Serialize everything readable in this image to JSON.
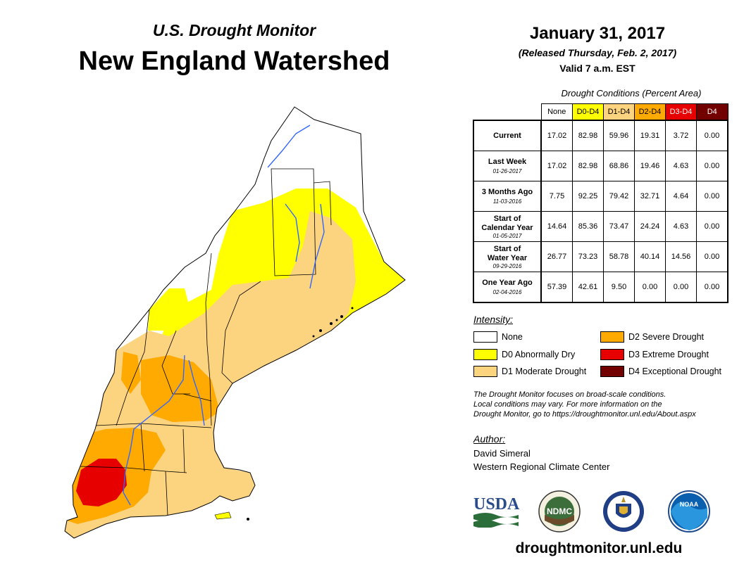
{
  "header": {
    "subtitle": "U.S. Drought Monitor",
    "title": "New England Watershed",
    "date": "January 31, 2017",
    "released": "(Released Thursday, Feb. 2, 2017)",
    "valid": "Valid 7 a.m. EST"
  },
  "table": {
    "caption": "Drought Conditions (Percent Area)",
    "columns": [
      {
        "label": "None",
        "color": "#ffffff",
        "text_color": "#000000"
      },
      {
        "label": "D0-D4",
        "color": "#ffff00",
        "text_color": "#000000"
      },
      {
        "label": "D1-D4",
        "color": "#fcd37f",
        "text_color": "#000000"
      },
      {
        "label": "D2-D4",
        "color": "#ffaa00",
        "text_color": "#000000"
      },
      {
        "label": "D3-D4",
        "color": "#e60000",
        "text_color": "#ffffff"
      },
      {
        "label": "D4",
        "color": "#730000",
        "text_color": "#ffffff"
      }
    ],
    "rows": [
      {
        "label": "Current",
        "date": "",
        "values": [
          "17.02",
          "82.98",
          "59.96",
          "19.31",
          "3.72",
          "0.00"
        ]
      },
      {
        "label": "Last Week",
        "date": "01-26-2017",
        "values": [
          "17.02",
          "82.98",
          "68.86",
          "19.46",
          "4.63",
          "0.00"
        ]
      },
      {
        "label": "3 Months Ago",
        "date": "11-03-2016",
        "values": [
          "7.75",
          "92.25",
          "79.42",
          "32.71",
          "4.64",
          "0.00"
        ]
      },
      {
        "label": "Start of Calendar Year",
        "date": "01-05-2017",
        "values": [
          "14.64",
          "85.36",
          "73.47",
          "24.24",
          "4.63",
          "0.00"
        ]
      },
      {
        "label": "Start of Water Year",
        "date": "09-29-2016",
        "values": [
          "26.77",
          "73.23",
          "58.78",
          "40.14",
          "14.56",
          "0.00"
        ]
      },
      {
        "label": "One Year Ago",
        "date": "02-04-2016",
        "values": [
          "57.39",
          "42.61",
          "9.50",
          "0.00",
          "0.00",
          "0.00"
        ]
      }
    ]
  },
  "legend": {
    "label": "Intensity:",
    "items": [
      {
        "label": "None",
        "color": "#ffffff"
      },
      {
        "label": "D0 Abnormally Dry",
        "color": "#ffff00"
      },
      {
        "label": "D1 Moderate Drought",
        "color": "#fcd37f"
      },
      {
        "label": "D2 Severe Drought",
        "color": "#ffaa00"
      },
      {
        "label": "D3 Extreme Drought",
        "color": "#e60000"
      },
      {
        "label": "D4 Exceptional Drought",
        "color": "#730000"
      }
    ]
  },
  "note": {
    "line1": "The Drought Monitor focuses on broad-scale conditions.",
    "line2": "Local conditions may vary. For more information on the",
    "line3": "Drought Monitor, go to https://droughtmonitor.unl.edu/About.aspx"
  },
  "author": {
    "label": "Author:",
    "name": "David Simeral",
    "org": "Western Regional Climate Center"
  },
  "logos": {
    "usda": "USDA",
    "ndmc": "NDMC",
    "noaa": "NOAA"
  },
  "website": "droughtmonitor.unl.edu",
  "map": {
    "region": "New England Watershed",
    "icons": [
      "usda-logo",
      "ndmc-logo",
      "commerce-seal",
      "noaa-logo"
    ]
  }
}
